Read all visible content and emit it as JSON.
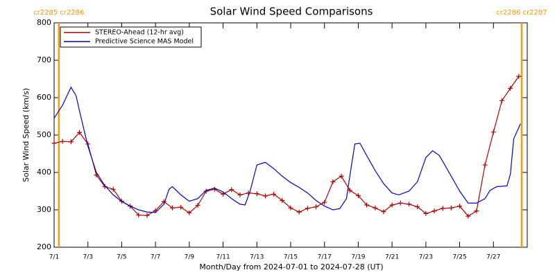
{
  "chart_data": {
    "type": "line",
    "title": "Solar Wind Speed Comparisons",
    "xlabel": "Month/Day from 2024-07-01 to 2024-07-28 (UT)",
    "ylabel": "Solar Wind Speed (km/s)",
    "xlim": [
      1,
      29
    ],
    "ylim": [
      200,
      800
    ],
    "xticks": [
      {
        "value": 1,
        "label": "7/1"
      },
      {
        "value": 3,
        "label": "7/3"
      },
      {
        "value": 5,
        "label": "7/5"
      },
      {
        "value": 7,
        "label": "7/7"
      },
      {
        "value": 9,
        "label": "7/9"
      },
      {
        "value": 11,
        "label": "7/11"
      },
      {
        "value": 13,
        "label": "7/13"
      },
      {
        "value": 15,
        "label": "7/15"
      },
      {
        "value": 17,
        "label": "7/17"
      },
      {
        "value": 19,
        "label": "7/19"
      },
      {
        "value": 21,
        "label": "7/21"
      },
      {
        "value": 23,
        "label": "7/23"
      },
      {
        "value": 25,
        "label": "7/25"
      },
      {
        "value": 27,
        "label": "7/27"
      }
    ],
    "yticks": [
      200,
      300,
      400,
      500,
      600,
      700,
      800
    ],
    "legend": "upper left",
    "annotations": [
      {
        "x": 1.28,
        "label": "cr2285 cr2286",
        "color": "#ff9900"
      },
      {
        "x": 28.67,
        "label": "cr2286 cr2287",
        "color": "#ff9900"
      }
    ],
    "series": [
      {
        "name": "STEREO-Ahead (12-hr avg)",
        "color": "#b00000",
        "marker": "+",
        "x": [
          1,
          1.5,
          2,
          2.5,
          3,
          3.5,
          4,
          4.5,
          5,
          5.5,
          6,
          6.5,
          7,
          7.5,
          8,
          8.5,
          9,
          9.5,
          10,
          10.5,
          11,
          11.5,
          12,
          12.5,
          13,
          13.5,
          14,
          14.5,
          15,
          15.5,
          16,
          16.5,
          17,
          17.5,
          18,
          18.5,
          19,
          19.5,
          20,
          20.5,
          21,
          21.5,
          22,
          22.5,
          23,
          23.5,
          24,
          24.5,
          25,
          25.5,
          26,
          26.5,
          27,
          27.5,
          28,
          28.5
        ],
        "values": [
          478,
          483,
          482,
          507,
          476,
          393,
          362,
          355,
          323,
          310,
          286,
          285,
          298,
          322,
          305,
          307,
          292,
          312,
          350,
          355,
          342,
          354,
          340,
          345,
          343,
          337,
          342,
          325,
          305,
          294,
          304,
          308,
          320,
          375,
          390,
          352,
          338,
          313,
          305,
          295,
          313,
          318,
          315,
          308,
          290,
          297,
          304,
          305,
          310,
          283,
          297,
          420,
          508,
          592,
          625,
          657
        ]
      },
      {
        "name": "Predictive Science MAS Model",
        "color": "#0000cc",
        "x": [
          1,
          1.5,
          2,
          2.3,
          2.5,
          3,
          3.5,
          4,
          4.5,
          5,
          5.5,
          6,
          6.5,
          7,
          7.5,
          7.8,
          8,
          8.5,
          9,
          9.5,
          10,
          10.5,
          11,
          11.5,
          12,
          12.3,
          12.6,
          13,
          13.5,
          14,
          14.5,
          15,
          15.5,
          16,
          16.5,
          17,
          17.5,
          17.9,
          18.3,
          18.6,
          18.8,
          19.1,
          19.5,
          20,
          20.5,
          21,
          21.4,
          22,
          22.5,
          23,
          23.4,
          23.8,
          24.5,
          25,
          25.5,
          26,
          26.5,
          26.8,
          27.2,
          27.8,
          28,
          28.2,
          28.6
        ],
        "values": [
          545,
          580,
          628,
          605,
          565,
          470,
          400,
          365,
          340,
          322,
          310,
          300,
          294,
          293,
          315,
          355,
          362,
          340,
          323,
          330,
          352,
          358,
          348,
          330,
          315,
          313,
          350,
          420,
          427,
          410,
          390,
          373,
          360,
          345,
          325,
          310,
          300,
          303,
          330,
          420,
          476,
          478,
          445,
          405,
          370,
          345,
          340,
          350,
          375,
          440,
          458,
          445,
          390,
          350,
          318,
          318,
          330,
          352,
          362,
          364,
          395,
          490,
          530
        ]
      }
    ]
  }
}
